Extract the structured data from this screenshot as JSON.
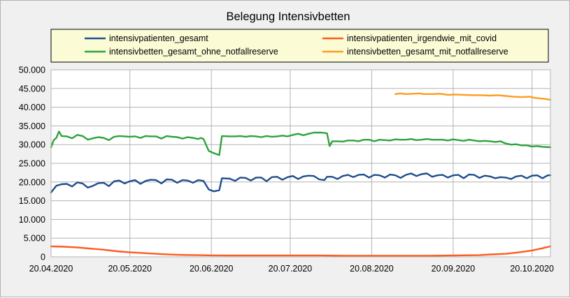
{
  "chart_data": {
    "type": "line",
    "title": "Belegung Intensivbetten",
    "xlabel": "",
    "ylabel": "",
    "x_start": "2020-04-20",
    "x_end": "2020-10-27",
    "xtick_labels": [
      "20.04.2020",
      "20.05.2020",
      "20.06.2020",
      "20.07.2020",
      "20.08.2020",
      "20.09.2020",
      "20.10.2020"
    ],
    "xtick_dates": [
      "2020-04-20",
      "2020-05-20",
      "2020-06-20",
      "2020-07-20",
      "2020-08-20",
      "2020-09-20",
      "2020-10-20"
    ],
    "ylim": [
      0,
      50000
    ],
    "ytick_values": [
      0,
      5000,
      10000,
      15000,
      20000,
      25000,
      30000,
      35000,
      40000,
      45000,
      50000
    ],
    "ytick_labels": [
      "0",
      "5.000",
      "10.000",
      "15.000",
      "20.000",
      "25.000",
      "30.000",
      "35.000",
      "40.000",
      "45.000",
      "50.000"
    ],
    "grid": true,
    "legend_position": "top",
    "series": [
      {
        "name": "intensivpatienten_gesamt",
        "color": "#1f4e8c",
        "points": [
          [
            "2020-04-20",
            17200
          ],
          [
            "2020-04-22",
            19000
          ],
          [
            "2020-04-24",
            19400
          ],
          [
            "2020-04-26",
            19500
          ],
          [
            "2020-04-28",
            18800
          ],
          [
            "2020-04-30",
            19900
          ],
          [
            "2020-05-02",
            19600
          ],
          [
            "2020-05-04",
            18500
          ],
          [
            "2020-05-06",
            19000
          ],
          [
            "2020-05-08",
            19700
          ],
          [
            "2020-05-10",
            19800
          ],
          [
            "2020-05-12",
            18900
          ],
          [
            "2020-05-14",
            20200
          ],
          [
            "2020-05-16",
            20400
          ],
          [
            "2020-05-18",
            19600
          ],
          [
            "2020-05-20",
            20200
          ],
          [
            "2020-05-22",
            20500
          ],
          [
            "2020-05-24",
            19500
          ],
          [
            "2020-05-26",
            20300
          ],
          [
            "2020-05-28",
            20600
          ],
          [
            "2020-05-30",
            20500
          ],
          [
            "2020-06-01",
            19600
          ],
          [
            "2020-06-03",
            20700
          ],
          [
            "2020-06-05",
            20600
          ],
          [
            "2020-06-07",
            19800
          ],
          [
            "2020-06-09",
            20500
          ],
          [
            "2020-06-11",
            20400
          ],
          [
            "2020-06-13",
            19800
          ],
          [
            "2020-06-15",
            20500
          ],
          [
            "2020-06-17",
            20300
          ],
          [
            "2020-06-19",
            18000
          ],
          [
            "2020-06-21",
            17500
          ],
          [
            "2020-06-23",
            17800
          ],
          [
            "2020-06-24",
            21000
          ],
          [
            "2020-06-27",
            20900
          ],
          [
            "2020-06-29",
            20300
          ],
          [
            "2020-07-01",
            21200
          ],
          [
            "2020-07-03",
            21100
          ],
          [
            "2020-07-05",
            20400
          ],
          [
            "2020-07-07",
            21200
          ],
          [
            "2020-07-09",
            21200
          ],
          [
            "2020-07-11",
            20200
          ],
          [
            "2020-07-13",
            21300
          ],
          [
            "2020-07-15",
            21400
          ],
          [
            "2020-07-17",
            20600
          ],
          [
            "2020-07-19",
            21300
          ],
          [
            "2020-07-21",
            21600
          ],
          [
            "2020-07-23",
            20800
          ],
          [
            "2020-07-25",
            21500
          ],
          [
            "2020-07-27",
            21700
          ],
          [
            "2020-07-29",
            21600
          ],
          [
            "2020-07-31",
            20700
          ],
          [
            "2020-08-02",
            20500
          ],
          [
            "2020-08-03",
            21400
          ],
          [
            "2020-08-05",
            21400
          ],
          [
            "2020-08-07",
            20800
          ],
          [
            "2020-08-09",
            21600
          ],
          [
            "2020-08-11",
            21900
          ],
          [
            "2020-08-13",
            21300
          ],
          [
            "2020-08-15",
            21900
          ],
          [
            "2020-08-17",
            22000
          ],
          [
            "2020-08-19",
            21200
          ],
          [
            "2020-08-21",
            21900
          ],
          [
            "2020-08-23",
            21800
          ],
          [
            "2020-08-25",
            21200
          ],
          [
            "2020-08-27",
            22000
          ],
          [
            "2020-08-29",
            21800
          ],
          [
            "2020-08-31",
            21100
          ],
          [
            "2020-09-02",
            21900
          ],
          [
            "2020-09-04",
            22300
          ],
          [
            "2020-09-06",
            21600
          ],
          [
            "2020-09-08",
            22100
          ],
          [
            "2020-09-10",
            22300
          ],
          [
            "2020-09-12",
            21400
          ],
          [
            "2020-09-14",
            21800
          ],
          [
            "2020-09-16",
            21900
          ],
          [
            "2020-09-18",
            21200
          ],
          [
            "2020-09-20",
            21800
          ],
          [
            "2020-09-22",
            21900
          ],
          [
            "2020-09-24",
            21000
          ],
          [
            "2020-09-26",
            22000
          ],
          [
            "2020-09-28",
            21900
          ],
          [
            "2020-09-30",
            21100
          ],
          [
            "2020-10-02",
            21700
          ],
          [
            "2020-10-04",
            21500
          ],
          [
            "2020-10-06",
            21000
          ],
          [
            "2020-10-08",
            21300
          ],
          [
            "2020-10-10",
            21200
          ],
          [
            "2020-10-12",
            20800
          ],
          [
            "2020-10-14",
            21500
          ],
          [
            "2020-10-16",
            21700
          ],
          [
            "2020-10-18",
            21000
          ],
          [
            "2020-10-20",
            21700
          ],
          [
            "2020-10-22",
            21800
          ],
          [
            "2020-10-24",
            21000
          ],
          [
            "2020-10-26",
            21800
          ],
          [
            "2020-10-27",
            21800
          ]
        ]
      },
      {
        "name": "intensivpatienten_irgendwie_mit_covid",
        "color": "#ff5a1f",
        "points": [
          [
            "2020-04-20",
            2800
          ],
          [
            "2020-04-25",
            2700
          ],
          [
            "2020-04-30",
            2500
          ],
          [
            "2020-05-05",
            2200
          ],
          [
            "2020-05-10",
            1900
          ],
          [
            "2020-05-15",
            1500
          ],
          [
            "2020-05-20",
            1200
          ],
          [
            "2020-05-25",
            1000
          ],
          [
            "2020-05-30",
            800
          ],
          [
            "2020-06-05",
            600
          ],
          [
            "2020-06-10",
            500
          ],
          [
            "2020-06-15",
            450
          ],
          [
            "2020-06-20",
            400
          ],
          [
            "2020-06-25",
            350
          ],
          [
            "2020-07-01",
            350
          ],
          [
            "2020-07-10",
            350
          ],
          [
            "2020-07-20",
            350
          ],
          [
            "2020-07-31",
            350
          ],
          [
            "2020-08-10",
            300
          ],
          [
            "2020-08-20",
            300
          ],
          [
            "2020-09-01",
            300
          ],
          [
            "2020-09-10",
            300
          ],
          [
            "2020-09-20",
            350
          ],
          [
            "2020-09-30",
            450
          ],
          [
            "2020-10-05",
            650
          ],
          [
            "2020-10-10",
            800
          ],
          [
            "2020-10-15",
            1200
          ],
          [
            "2020-10-20",
            1700
          ],
          [
            "2020-10-24",
            2300
          ],
          [
            "2020-10-27",
            2800
          ]
        ]
      },
      {
        "name": "intensivbetten_gesamt_ohne_notfallreserve",
        "color": "#2ca33c",
        "points": [
          [
            "2020-04-20",
            29300
          ],
          [
            "2020-04-21",
            31200
          ],
          [
            "2020-04-22",
            31800
          ],
          [
            "2020-04-23",
            33500
          ],
          [
            "2020-04-24",
            32300
          ],
          [
            "2020-04-26",
            32200
          ],
          [
            "2020-04-28",
            31700
          ],
          [
            "2020-04-30",
            32600
          ],
          [
            "2020-05-02",
            32300
          ],
          [
            "2020-05-04",
            31300
          ],
          [
            "2020-05-06",
            31700
          ],
          [
            "2020-05-08",
            32000
          ],
          [
            "2020-05-10",
            31800
          ],
          [
            "2020-05-12",
            31200
          ],
          [
            "2020-05-14",
            32100
          ],
          [
            "2020-05-16",
            32300
          ],
          [
            "2020-05-18",
            32200
          ],
          [
            "2020-05-20",
            32100
          ],
          [
            "2020-05-22",
            32200
          ],
          [
            "2020-05-24",
            31800
          ],
          [
            "2020-05-26",
            32300
          ],
          [
            "2020-05-28",
            32200
          ],
          [
            "2020-05-30",
            32200
          ],
          [
            "2020-06-01",
            31600
          ],
          [
            "2020-06-03",
            32300
          ],
          [
            "2020-06-05",
            32100
          ],
          [
            "2020-06-07",
            32000
          ],
          [
            "2020-06-09",
            31600
          ],
          [
            "2020-06-11",
            32000
          ],
          [
            "2020-06-13",
            31800
          ],
          [
            "2020-06-15",
            31500
          ],
          [
            "2020-06-16",
            31800
          ],
          [
            "2020-06-17",
            31500
          ],
          [
            "2020-06-19",
            28300
          ],
          [
            "2020-06-21",
            27700
          ],
          [
            "2020-06-23",
            27200
          ],
          [
            "2020-06-24",
            32300
          ],
          [
            "2020-06-27",
            32200
          ],
          [
            "2020-06-29",
            32200
          ],
          [
            "2020-07-01",
            32300
          ],
          [
            "2020-07-03",
            32100
          ],
          [
            "2020-07-05",
            32300
          ],
          [
            "2020-07-07",
            32200
          ],
          [
            "2020-07-09",
            32000
          ],
          [
            "2020-07-11",
            32300
          ],
          [
            "2020-07-13",
            32100
          ],
          [
            "2020-07-15",
            32200
          ],
          [
            "2020-07-17",
            32400
          ],
          [
            "2020-07-19",
            32200
          ],
          [
            "2020-07-21",
            32600
          ],
          [
            "2020-07-23",
            32900
          ],
          [
            "2020-07-25",
            32500
          ],
          [
            "2020-07-27",
            32900
          ],
          [
            "2020-07-29",
            33200
          ],
          [
            "2020-08-01",
            33200
          ],
          [
            "2020-08-03",
            33000
          ],
          [
            "2020-08-04",
            29600
          ],
          [
            "2020-08-05",
            30900
          ],
          [
            "2020-08-07",
            30900
          ],
          [
            "2020-08-09",
            30800
          ],
          [
            "2020-08-11",
            31100
          ],
          [
            "2020-08-13",
            31100
          ],
          [
            "2020-08-15",
            30900
          ],
          [
            "2020-08-17",
            31300
          ],
          [
            "2020-08-19",
            31300
          ],
          [
            "2020-08-21",
            30900
          ],
          [
            "2020-08-23",
            31300
          ],
          [
            "2020-08-25",
            31200
          ],
          [
            "2020-08-27",
            31100
          ],
          [
            "2020-08-29",
            31400
          ],
          [
            "2020-08-31",
            31300
          ],
          [
            "2020-09-02",
            31300
          ],
          [
            "2020-09-04",
            31500
          ],
          [
            "2020-09-06",
            31200
          ],
          [
            "2020-09-08",
            31300
          ],
          [
            "2020-09-10",
            31500
          ],
          [
            "2020-09-12",
            31300
          ],
          [
            "2020-09-14",
            31300
          ],
          [
            "2020-09-16",
            31300
          ],
          [
            "2020-09-18",
            31100
          ],
          [
            "2020-09-20",
            31400
          ],
          [
            "2020-09-22",
            31200
          ],
          [
            "2020-09-24",
            31000
          ],
          [
            "2020-09-26",
            31300
          ],
          [
            "2020-09-28",
            31100
          ],
          [
            "2020-09-30",
            30900
          ],
          [
            "2020-10-02",
            31000
          ],
          [
            "2020-10-04",
            30900
          ],
          [
            "2020-10-06",
            30700
          ],
          [
            "2020-10-08",
            30900
          ],
          [
            "2020-10-10",
            30300
          ],
          [
            "2020-10-12",
            30000
          ],
          [
            "2020-10-14",
            30100
          ],
          [
            "2020-10-16",
            29800
          ],
          [
            "2020-10-18",
            29800
          ],
          [
            "2020-10-20",
            29500
          ],
          [
            "2020-10-22",
            29600
          ],
          [
            "2020-10-24",
            29400
          ],
          [
            "2020-10-27",
            29300
          ]
        ]
      },
      {
        "name": "intensivbetten_gesamt_mit_notfallreserve",
        "color": "#ff9b1f",
        "points": [
          [
            "2020-08-29",
            43500
          ],
          [
            "2020-08-31",
            43700
          ],
          [
            "2020-09-02",
            43500
          ],
          [
            "2020-09-05",
            43600
          ],
          [
            "2020-09-07",
            43700
          ],
          [
            "2020-09-09",
            43500
          ],
          [
            "2020-09-12",
            43500
          ],
          [
            "2020-09-15",
            43600
          ],
          [
            "2020-09-18",
            43300
          ],
          [
            "2020-09-21",
            43400
          ],
          [
            "2020-09-24",
            43300
          ],
          [
            "2020-09-28",
            43200
          ],
          [
            "2020-10-01",
            43200
          ],
          [
            "2020-10-04",
            43100
          ],
          [
            "2020-10-07",
            43200
          ],
          [
            "2020-10-10",
            43000
          ],
          [
            "2020-10-13",
            42800
          ],
          [
            "2020-10-16",
            42700
          ],
          [
            "2020-10-19",
            42800
          ],
          [
            "2020-10-21",
            42500
          ],
          [
            "2020-10-24",
            42300
          ],
          [
            "2020-10-27",
            42000
          ]
        ]
      }
    ]
  }
}
